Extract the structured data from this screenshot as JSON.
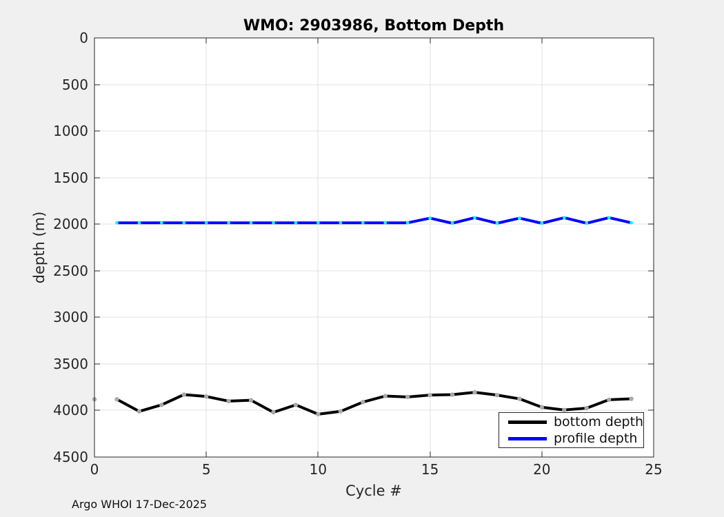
{
  "footer": "Argo WHOI 17-Dec-2025",
  "chart_data": {
    "type": "line",
    "title": "WMO: 2903986, Bottom Depth",
    "xlabel": "Cycle #",
    "ylabel": "depth (m)",
    "xlim": [
      0,
      25
    ],
    "ylim": [
      0,
      4500
    ],
    "y_axis_direction": "reversed (0 at top, depth increases downward)",
    "xticks": [
      0,
      5,
      10,
      15,
      20,
      25
    ],
    "yticks": [
      0,
      500,
      1000,
      1500,
      2000,
      2500,
      3000,
      3500,
      4000,
      4500
    ],
    "grid": true,
    "grid_color": "#e0e0e0",
    "background_color": "#f0f0f0",
    "plot_background_color": "#ffffff",
    "legend": {
      "position": "lower-right",
      "border": true
    },
    "series": [
      {
        "name": "bottom depth",
        "line_color": "#000000",
        "marker_color": "#a9a9a9",
        "x": [
          1,
          2,
          3,
          4,
          5,
          6,
          7,
          8,
          9,
          10,
          11,
          12,
          13,
          14,
          15,
          16,
          17,
          18,
          19,
          20,
          21,
          22,
          23,
          24
        ],
        "y": [
          3880,
          4010,
          3940,
          3830,
          3850,
          3900,
          3890,
          4020,
          3940,
          4040,
          4010,
          3910,
          3845,
          3855,
          3835,
          3830,
          3805,
          3835,
          3875,
          3965,
          3995,
          3975,
          3885,
          3875
        ],
        "marker_only_points": {
          "x": [
            0
          ],
          "y": [
            3880
          ]
        }
      },
      {
        "name": "profile depth",
        "line_color": "#0000ff",
        "marker_color": "#00ffff",
        "x": [
          1,
          2,
          3,
          4,
          5,
          6,
          7,
          8,
          9,
          10,
          11,
          12,
          13,
          14,
          15,
          16,
          17,
          18,
          19,
          20,
          21,
          22,
          23,
          24
        ],
        "y": [
          1985,
          1985,
          1985,
          1985,
          1985,
          1985,
          1985,
          1985,
          1985,
          1985,
          1985,
          1985,
          1985,
          1985,
          1935,
          1990,
          1930,
          1990,
          1935,
          1990,
          1930,
          1990,
          1930,
          1985
        ]
      }
    ]
  }
}
